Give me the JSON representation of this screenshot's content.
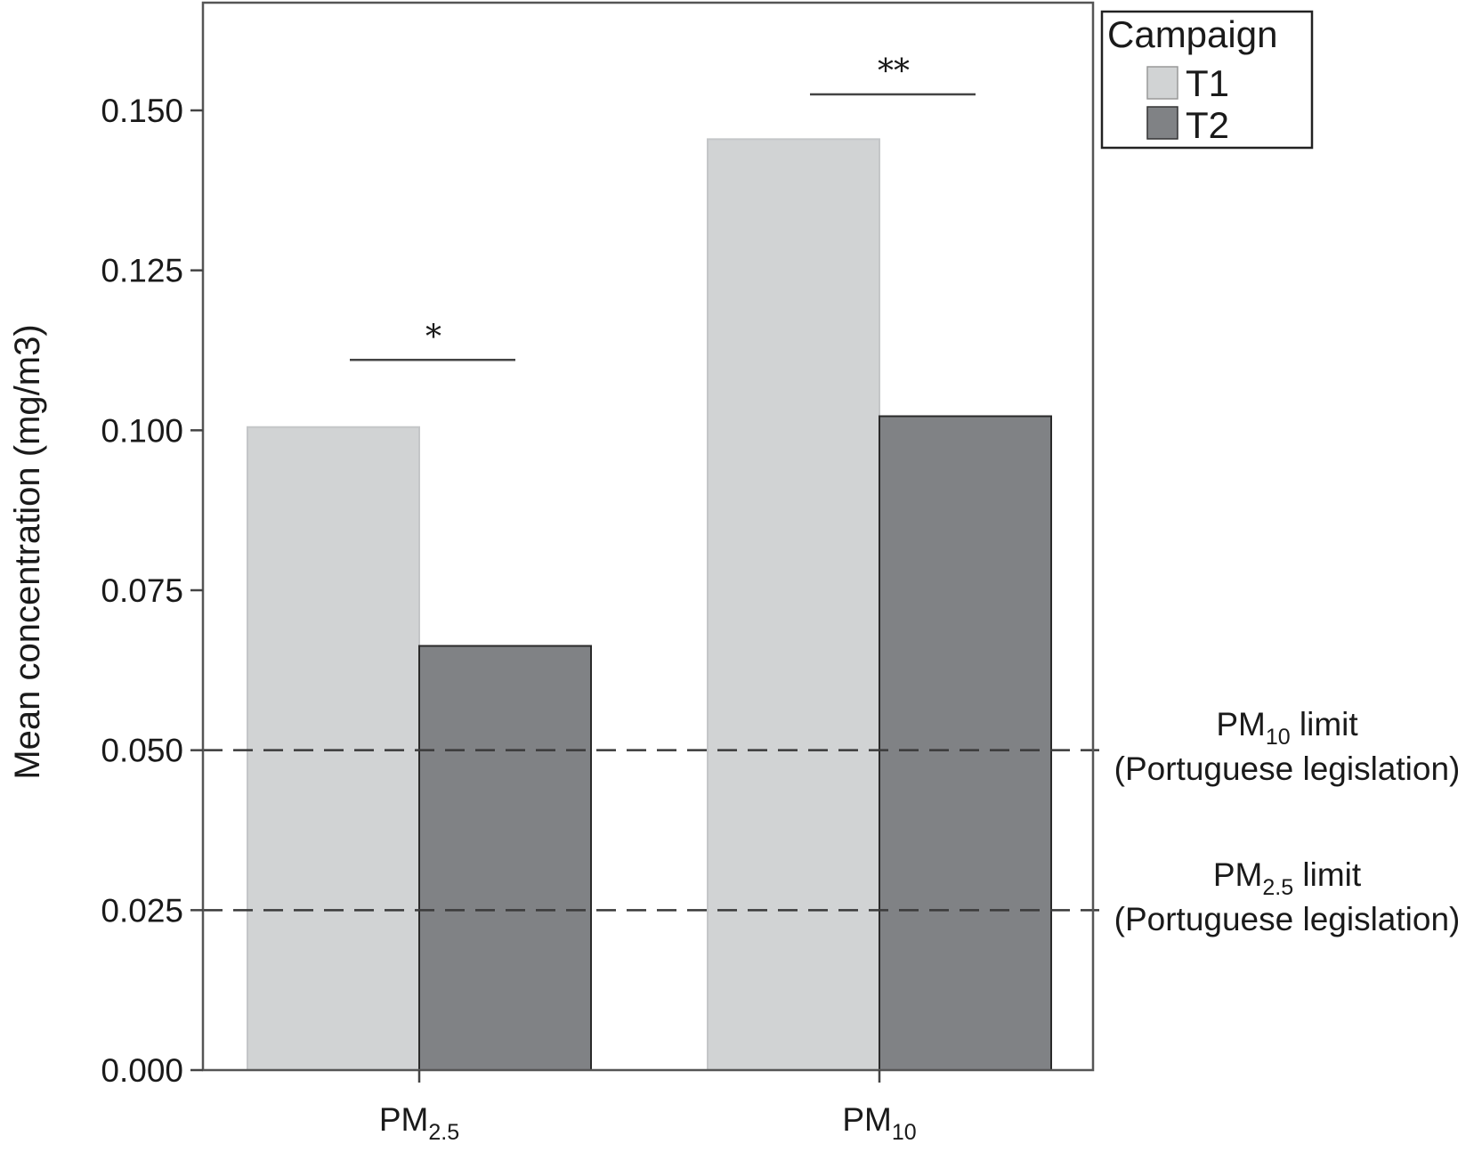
{
  "chart_data": {
    "type": "bar",
    "ylabel": "Mean concentration (mg/m3)",
    "ylim": [
      0,
      0.165
    ],
    "yticks": [
      "0.000",
      "0.025",
      "0.050",
      "0.075",
      "0.100",
      "0.125",
      "0.150"
    ],
    "categories": [
      {
        "base": "PM",
        "sub": "2.5"
      },
      {
        "base": "PM",
        "sub": "10"
      }
    ],
    "series": [
      {
        "name": "T1",
        "color": "#d1d3d4",
        "values": [
          0.1005,
          0.1455
        ]
      },
      {
        "name": "T2",
        "color": "#808285",
        "values": [
          0.0663,
          0.1022
        ]
      }
    ],
    "legend": {
      "title": "Campaign",
      "placement": "top-right"
    },
    "reference_lines": [
      {
        "value": 0.05,
        "label_base": "PM",
        "label_sub": "10",
        "label_tail": " limit",
        "label_line2": "(Portuguese legislation)"
      },
      {
        "value": 0.025,
        "label_base": "PM",
        "label_sub": "2.5",
        "label_tail": " limit",
        "label_line2": "(Portuguese legislation)"
      }
    ],
    "significance": [
      {
        "category_index": 0,
        "label": "*",
        "y": 0.111
      },
      {
        "category_index": 1,
        "label": "**",
        "y": 0.1525
      }
    ],
    "grid": false
  }
}
